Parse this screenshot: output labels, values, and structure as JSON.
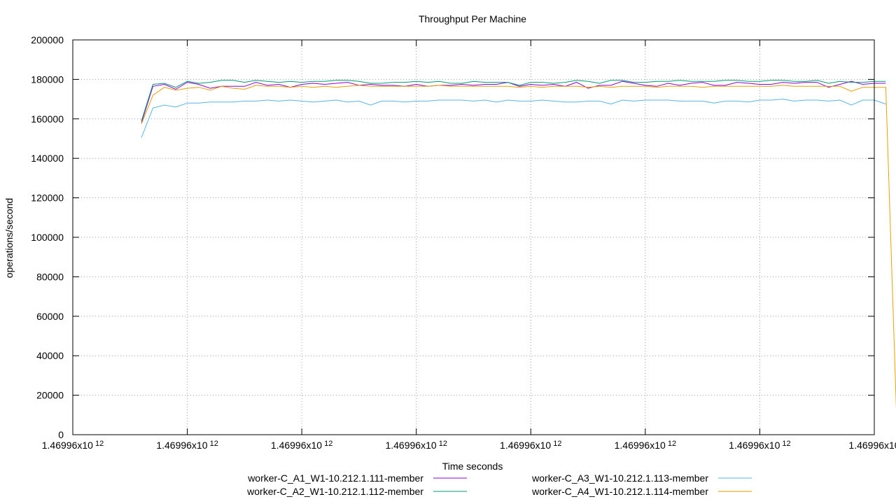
{
  "chart_data": {
    "type": "line",
    "title": "Throughput Per Machine",
    "xlabel": "Time seconds",
    "ylabel": "operations/second",
    "ylim": [
      0,
      200000
    ],
    "y_ticks": [
      0,
      20000,
      40000,
      60000,
      80000,
      100000,
      120000,
      140000,
      160000,
      180000,
      200000
    ],
    "x_tick_labels": [
      "1.46996x10 12",
      "1.46996x10 12",
      "1.46996x10 12",
      "1.46996x10 12",
      "1.46996x10 12",
      "1.46996x10 12",
      "1.46996x10 12",
      "1.46996x10"
    ],
    "x_tick_base": "1.46996x10",
    "x_tick_exponent": "12",
    "x_tick_count": 8,
    "samples_per_tick_interval": 10,
    "grid": true,
    "legend_position": "bottom",
    "series": [
      {
        "name": "worker-C_A1_W1-10.212.1.111-member",
        "color": "#9400d3",
        "values": [
          158000,
          176500,
          177500,
          175000,
          178500,
          177500,
          175500,
          176500,
          176500,
          176500,
          178500,
          177000,
          177500,
          176000,
          177500,
          178000,
          177500,
          178000,
          178500,
          177000,
          177500,
          177000,
          177000,
          176500,
          177500,
          176500,
          177000,
          177000,
          177500,
          177000,
          177500,
          177500,
          178500,
          176500,
          177500,
          177000,
          177500,
          176500,
          178500,
          175500,
          177000,
          177000,
          179000,
          178000,
          177000,
          176500,
          178000,
          177000,
          178000,
          178500,
          177000,
          177000,
          178500,
          178000,
          177500,
          177500,
          178500,
          178000,
          178500,
          178500,
          176000,
          177500,
          179000,
          177500,
          178000,
          178000
        ]
      },
      {
        "name": "worker-C_A2_W1-10.212.1.112-member",
        "color": "#009e73",
        "values": [
          159000,
          177500,
          178000,
          176000,
          179000,
          178000,
          178500,
          179500,
          179500,
          178500,
          179500,
          179000,
          178500,
          179000,
          178500,
          179000,
          179000,
          179500,
          179500,
          179000,
          178000,
          178000,
          178500,
          178500,
          179000,
          178500,
          179000,
          178000,
          178000,
          179000,
          178500,
          178500,
          178500,
          177000,
          178500,
          178500,
          178000,
          178500,
          179500,
          179000,
          178000,
          179500,
          179500,
          178500,
          178500,
          179000,
          179000,
          179500,
          179000,
          179000,
          179000,
          179500,
          179500,
          179000,
          179000,
          179500,
          179500,
          179000,
          179000,
          179500,
          178000,
          179000,
          178500,
          178500,
          179000,
          179000
        ]
      },
      {
        "name": "worker-C_A3_W1-10.212.1.113-member",
        "color": "#56b4e9",
        "values": [
          150500,
          165500,
          167000,
          166000,
          168000,
          168000,
          168500,
          168500,
          168500,
          169000,
          169000,
          169500,
          169000,
          169500,
          169000,
          168500,
          169000,
          169500,
          168500,
          169000,
          167000,
          169000,
          169000,
          168500,
          169000,
          169000,
          169500,
          169500,
          169500,
          169000,
          169500,
          168500,
          169500,
          169000,
          169000,
          169500,
          169000,
          168500,
          168500,
          169000,
          169000,
          167500,
          169500,
          169000,
          169500,
          169500,
          169500,
          169000,
          169000,
          169000,
          168000,
          169000,
          169000,
          168500,
          169500,
          169500,
          170000,
          169000,
          169500,
          169500,
          169000,
          169500,
          167000,
          169500,
          169500,
          167500
        ]
      },
      {
        "name": "worker-C_A4_W1-10.212.1.114-member",
        "color": "#e69f00",
        "values": [
          157500,
          172000,
          176000,
          174500,
          175500,
          176000,
          174500,
          176500,
          175500,
          175000,
          177000,
          176500,
          176500,
          176000,
          176500,
          176000,
          176500,
          176000,
          176500,
          177000,
          176500,
          176500,
          176500,
          176500,
          176500,
          176500,
          177000,
          176500,
          176500,
          176500,
          176500,
          176500,
          176500,
          176000,
          176500,
          176000,
          176500,
          176500,
          176500,
          176000,
          176500,
          176000,
          176500,
          176500,
          176500,
          176000,
          176500,
          176500,
          176500,
          176000,
          176500,
          176500,
          176500,
          176500,
          176500,
          176500,
          177000,
          176500,
          176500,
          176500,
          176500,
          176500,
          174000,
          176000,
          176000,
          176000,
          0
        ]
      }
    ],
    "x_start_offset": 6
  }
}
